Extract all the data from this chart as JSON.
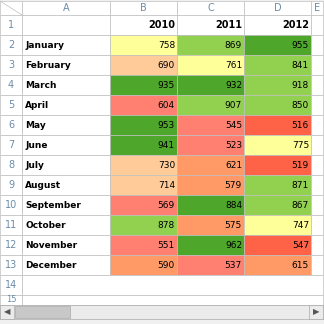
{
  "months": [
    "January",
    "February",
    "March",
    "April",
    "May",
    "June",
    "July",
    "August",
    "September",
    "October",
    "November",
    "December"
  ],
  "years": [
    "2010",
    "2011",
    "2012"
  ],
  "values": [
    [
      758,
      869,
      955
    ],
    [
      690,
      761,
      841
    ],
    [
      935,
      932,
      918
    ],
    [
      604,
      907,
      850
    ],
    [
      953,
      545,
      516
    ],
    [
      941,
      523,
      775
    ],
    [
      730,
      621,
      519
    ],
    [
      714,
      579,
      871
    ],
    [
      569,
      884,
      867
    ],
    [
      878,
      575,
      747
    ],
    [
      551,
      962,
      547
    ],
    [
      590,
      537,
      615
    ]
  ],
  "cell_colors": [
    [
      "#FFFF99",
      "#92D050",
      "#4EA72A"
    ],
    [
      "#FFCC99",
      "#FFFF99",
      "#92D050"
    ],
    [
      "#4EA72A",
      "#4EA72A",
      "#92D050"
    ],
    [
      "#FF8070",
      "#92D050",
      "#92D050"
    ],
    [
      "#4EA72A",
      "#FF8070",
      "#FF6347"
    ],
    [
      "#4EA72A",
      "#FF8070",
      "#FFFF99"
    ],
    [
      "#FFCC99",
      "#FF9966",
      "#FF6347"
    ],
    [
      "#FFCC99",
      "#FF9966",
      "#92D050"
    ],
    [
      "#FF8070",
      "#4EA72A",
      "#92D050"
    ],
    [
      "#92D050",
      "#FF9966",
      "#FFFF99"
    ],
    [
      "#FF8070",
      "#4EA72A",
      "#FF6347"
    ],
    [
      "#FF9966",
      "#FF8070",
      "#FF9966"
    ]
  ],
  "grid_color": "#C0C0C0",
  "font_size": 6.5,
  "header_font_size": 7.0,
  "fig_bg": "#F0F0F0",
  "sheet_tab_color": "#D3D3D3",
  "col_letter_color": "#6B8CA8",
  "row_num_color": "#6B8CA8"
}
